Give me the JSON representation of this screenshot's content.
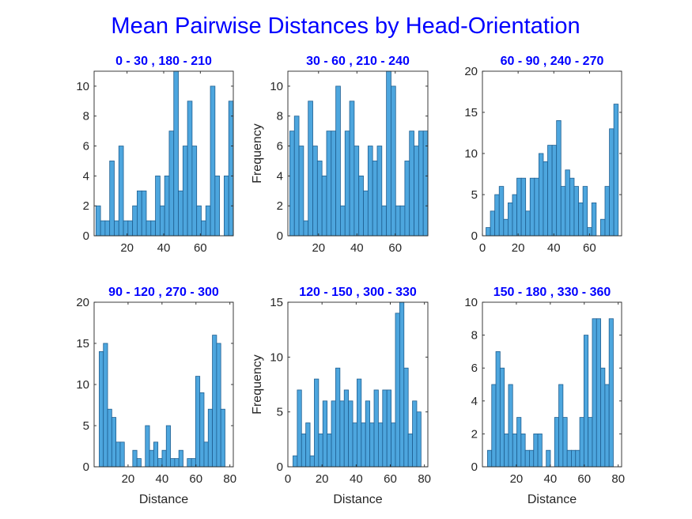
{
  "figure_title": "Mean Pairwise Distances by Head-Orientation",
  "colors": {
    "bar_fill": "#4DA6DE",
    "bar_edge": "#1F5F91",
    "title": "#0000FF",
    "axis": "#262626"
  },
  "chart_data": [
    {
      "type": "bar",
      "title": "0  - 30 , 180  - 210",
      "xlabel": "",
      "ylabel": "",
      "xlim": [
        2,
        78
      ],
      "ylim": [
        0,
        11
      ],
      "xticks": [
        20,
        40,
        60
      ],
      "yticks": [
        0,
        2,
        4,
        6,
        8,
        10
      ],
      "bin_start": 3,
      "bin_width": 2.5,
      "values": [
        2,
        1,
        1,
        5,
        1,
        6,
        1,
        1,
        2,
        3,
        3,
        1,
        1,
        4,
        2,
        4,
        7,
        11,
        3,
        6,
        9,
        6,
        2,
        1,
        2,
        10,
        4,
        0,
        4,
        9
      ]
    },
    {
      "type": "bar",
      "title": "30  - 60 , 210  - 240",
      "xlabel": "",
      "ylabel": "Frequency",
      "xlim": [
        4,
        77
      ],
      "ylim": [
        0,
        11
      ],
      "xticks": [
        20,
        40,
        60
      ],
      "yticks": [
        0,
        2,
        4,
        6,
        8,
        10
      ],
      "bin_start": 5,
      "bin_width": 2.4,
      "values": [
        7,
        8,
        6,
        1,
        9,
        6,
        5,
        4,
        7,
        7,
        10,
        2,
        7,
        9,
        6,
        4,
        3,
        6,
        5,
        6,
        2,
        11,
        10,
        2,
        2,
        5,
        7,
        6,
        7,
        7
      ]
    },
    {
      "type": "bar",
      "title": "60  - 90 , 240  - 270",
      "xlabel": "",
      "ylabel": "",
      "xlim": [
        0,
        78
      ],
      "ylim": [
        0,
        20
      ],
      "xticks": [
        0,
        20,
        40,
        60
      ],
      "yticks": [
        0,
        5,
        10,
        15,
        20
      ],
      "bin_start": 2,
      "bin_width": 2.47,
      "values": [
        1,
        3,
        5,
        6,
        2,
        4,
        5,
        7,
        7,
        3,
        7,
        7,
        10,
        9,
        11,
        11,
        14,
        6,
        8,
        7,
        6,
        4,
        6,
        1,
        4,
        0,
        2,
        6,
        13,
        16
      ]
    },
    {
      "type": "bar",
      "title": "90  - 120 , 270  - 300",
      "xlabel": "Distance",
      "ylabel": "",
      "xlim": [
        0,
        82
      ],
      "ylim": [
        0,
        20
      ],
      "xticks": [
        20,
        40,
        60,
        80
      ],
      "yticks": [
        0,
        5,
        10,
        15,
        20
      ],
      "bin_start": 3,
      "bin_width": 2.47,
      "values": [
        14,
        15,
        7,
        6,
        3,
        3,
        0,
        0,
        2,
        1,
        0,
        5,
        2,
        3,
        1,
        2,
        5,
        1,
        1,
        2,
        0,
        1,
        1,
        11,
        9,
        3,
        7,
        16,
        15,
        7
      ]
    },
    {
      "type": "bar",
      "title": "120  - 150 , 300  - 330",
      "xlabel": "Distance",
      "ylabel": "Frequency",
      "xlim": [
        0,
        82
      ],
      "ylim": [
        0,
        15
      ],
      "xticks": [
        0,
        20,
        40,
        60,
        80
      ],
      "yticks": [
        0,
        5,
        10,
        15
      ],
      "bin_start": 3,
      "bin_width": 2.5,
      "values": [
        1,
        7,
        3,
        4,
        1,
        8,
        3,
        6,
        3,
        6,
        9,
        6,
        7,
        6,
        4,
        8,
        4,
        6,
        4,
        7,
        4,
        7,
        7,
        4,
        14,
        15,
        9,
        3,
        6,
        5
      ]
    },
    {
      "type": "bar",
      "title": "150  - 180 , 330  - 360",
      "xlabel": "Distance",
      "ylabel": "",
      "xlim": [
        0,
        82
      ],
      "ylim": [
        0,
        10
      ],
      "xticks": [
        20,
        40,
        60,
        80
      ],
      "yticks": [
        0,
        2,
        4,
        6,
        8,
        10
      ],
      "bin_start": 3,
      "bin_width": 2.47,
      "values": [
        1,
        5,
        7,
        6,
        2,
        5,
        2,
        3,
        2,
        1,
        1,
        2,
        2,
        0,
        1,
        0,
        3,
        5,
        3,
        1,
        1,
        1,
        3,
        8,
        3,
        9,
        9,
        6,
        5,
        9
      ]
    }
  ]
}
